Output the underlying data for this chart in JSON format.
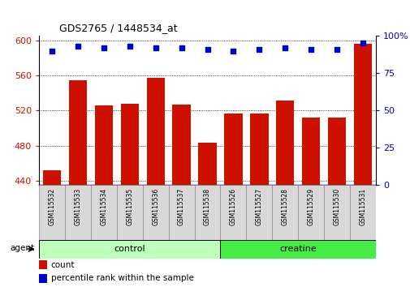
{
  "title": "GDS2765 / 1448534_at",
  "samples": [
    "GSM115532",
    "GSM115533",
    "GSM115534",
    "GSM115535",
    "GSM115536",
    "GSM115537",
    "GSM115538",
    "GSM115526",
    "GSM115527",
    "GSM115528",
    "GSM115529",
    "GSM115530",
    "GSM115531"
  ],
  "counts": [
    452,
    554,
    526,
    528,
    557,
    527,
    483,
    517,
    517,
    531,
    512,
    512,
    596
  ],
  "percentiles": [
    90,
    93,
    92,
    93,
    92,
    92,
    91,
    90,
    91,
    92,
    91,
    91,
    95
  ],
  "groups": [
    {
      "label": "control",
      "start": 0,
      "end": 7,
      "color": "#bbffbb"
    },
    {
      "label": "creatine",
      "start": 7,
      "end": 13,
      "color": "#44ee44"
    }
  ],
  "agent_label": "agent",
  "bar_color": "#cc1100",
  "dot_color": "#0000cc",
  "ylim_left": [
    435,
    605
  ],
  "ylim_right": [
    0,
    100
  ],
  "yticks_left": [
    440,
    480,
    520,
    560,
    600
  ],
  "yticks_right": [
    0,
    25,
    50,
    75,
    100
  ],
  "legend_count_label": "count",
  "legend_pct_label": "percentile rank within the sample",
  "bar_width": 0.7,
  "label_cell_color": "#d8d8d8",
  "label_cell_border": "#888888"
}
